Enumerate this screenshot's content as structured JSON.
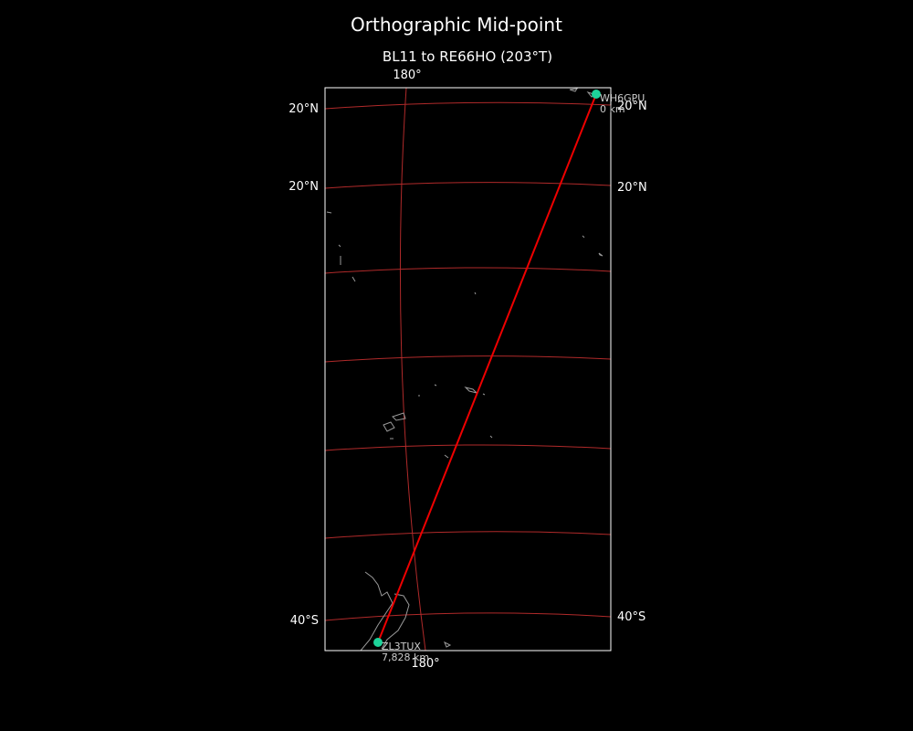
{
  "title": "Orthographic Mid-point",
  "subtitle": "BL11 to RE66HO (203°T)",
  "graticule_labels": {
    "top": [
      "180°"
    ],
    "bottom": [
      "180°"
    ],
    "left": [
      "20°N",
      "20°N",
      "40°S"
    ],
    "right": [
      "20°N",
      "20°N",
      "40°S"
    ]
  },
  "stations": [
    {
      "call": "WH6GPU",
      "distance": "0 km"
    },
    {
      "call": "ZL3TUX",
      "distance": "7,828 km"
    }
  ]
}
